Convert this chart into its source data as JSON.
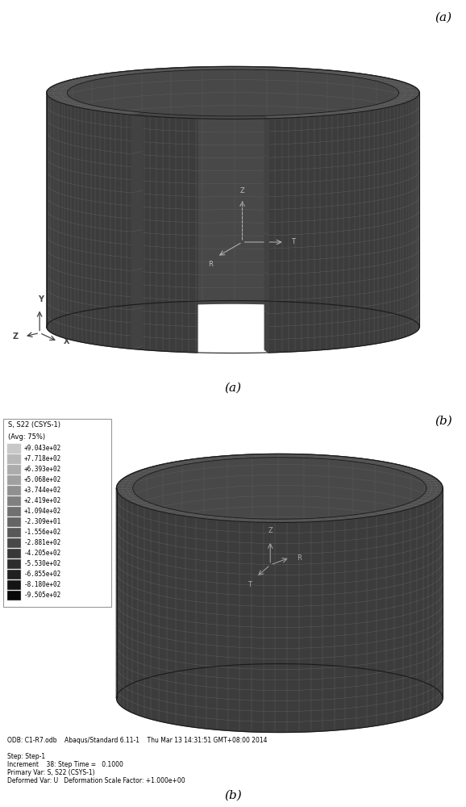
{
  "fig_width": 5.78,
  "fig_height": 10.0,
  "label_a_top": "(a)",
  "label_a_bottom": "(a)",
  "label_b_top": "(b)",
  "label_b_bottom": "(b)",
  "colorbar_title_line1": "S, S22 (CSYS-1)",
  "colorbar_title_line2": "(Avg: 75%)",
  "colorbar_values": [
    "+9.043e+02",
    "+7.718e+02",
    "+6.393e+02",
    "+5.068e+02",
    "+3.744e+02",
    "+2.419e+02",
    "+1.094e+02",
    "-2.309e+01",
    "-1.556e+02",
    "-2.881e+02",
    "-4.205e+02",
    "-5.530e+02",
    "-6.855e+02",
    "-8.180e+02",
    "-9.505e+02"
  ],
  "colorbar_colors": [
    "#c8c8c8",
    "#b8b8b8",
    "#acacac",
    "#a0a0a0",
    "#909090",
    "#808080",
    "#707070",
    "#646464",
    "#585858",
    "#484848",
    "#383838",
    "#2c2c2c",
    "#202020",
    "#141414",
    "#080808"
  ],
  "odb_text": "ODB: C1-R7.odb    Abaqus/Standard 6.11-1    Thu Mar 13 14:31:51 GMT+08:00 2014",
  "step_line1": "Step: Step-1",
  "step_line2": "Increment    38: Step Time =   0.1000",
  "step_line3": "Primary Var: S, S22 (CSYS-1)",
  "step_line4": "Deformed Var: U   Deformation Scale Factor: +1.000e+00",
  "ring_a_outer_color": "#3c3c3c",
  "ring_a_inner_color": "#484848",
  "ring_a_top_color": "#505050",
  "ring_b_outer_color": "#3c3c3c",
  "ring_b_inner_color": "#484848",
  "ring_b_top_color": "#4e4e4e",
  "mesh_color": "#6e6e6e",
  "outline_color": "#1a1a1a"
}
